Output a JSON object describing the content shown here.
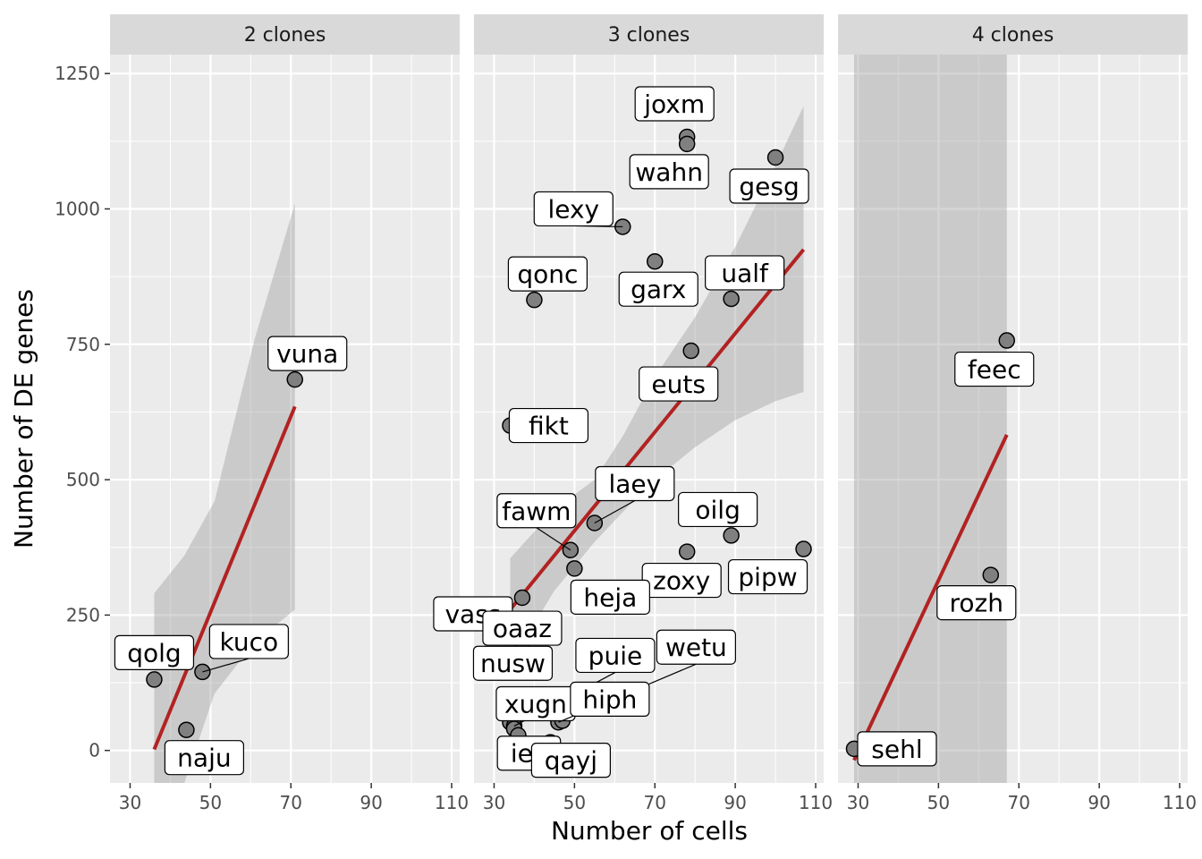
{
  "chart_data": {
    "type": "scatter",
    "xlabel": "Number of cells",
    "ylabel": "Number of DE genes",
    "xlim": [
      25,
      112
    ],
    "ylim": [
      -60,
      1285
    ],
    "x_ticks": [
      30,
      50,
      70,
      90,
      110
    ],
    "y_ticks": [
      0,
      250,
      500,
      750,
      1000,
      1250
    ],
    "grid": true,
    "legend": "none",
    "colors": {
      "panel_bg": "#ebebeb",
      "strip_bg": "#d9d9d9",
      "grid": "#ffffff",
      "point_fill": "#808080",
      "point_stroke": "#000000",
      "fit_line": "#b22222",
      "ribbon": "#999999"
    },
    "facets": [
      {
        "strip": "2 clones",
        "points": [
          {
            "label": "vuna",
            "x": 71,
            "y": 685
          },
          {
            "label": "kuco",
            "x": 48,
            "y": 145
          },
          {
            "label": "qolg",
            "x": 36,
            "y": 131
          },
          {
            "label": "naju",
            "x": 44,
            "y": 38
          }
        ],
        "fit": {
          "x": [
            36,
            71
          ],
          "y": [
            2,
            635
          ]
        },
        "ribbon": {
          "x": [
            36,
            43.5,
            51,
            61,
            71
          ],
          "lower": [
            -60,
            -60,
            105,
            200,
            260
          ],
          "upper": [
            290,
            360,
            460,
            760,
            1010
          ]
        }
      },
      {
        "strip": "3 clones",
        "points": [
          {
            "label": "joxm",
            "x": 78,
            "y": 1133
          },
          {
            "label": "wahn",
            "x": 78,
            "y": 1120
          },
          {
            "label": "gesg",
            "x": 100,
            "y": 1095
          },
          {
            "label": "lexy",
            "x": 62,
            "y": 967
          },
          {
            "label": "garx",
            "x": 70,
            "y": 903
          },
          {
            "label": "qonc",
            "x": 40,
            "y": 832
          },
          {
            "label": "ualf",
            "x": 89,
            "y": 834
          },
          {
            "label": "euts",
            "x": 79,
            "y": 738
          },
          {
            "label": "fikt",
            "x": 34,
            "y": 600
          },
          {
            "label": "laey",
            "x": 55,
            "y": 420
          },
          {
            "label": "oilg",
            "x": 89,
            "y": 397
          },
          {
            "label": "pipw",
            "x": 107,
            "y": 372
          },
          {
            "label": "fawm",
            "x": 49,
            "y": 370
          },
          {
            "label": "zoxy",
            "x": 78,
            "y": 367
          },
          {
            "label": "heja",
            "x": 50,
            "y": 336
          },
          {
            "label": "vass",
            "x": 37,
            "y": 282
          },
          {
            "label": "oaaz",
            "x": 37,
            "y": 201
          },
          {
            "label": "nusw",
            "x": 34,
            "y": 52
          },
          {
            "label": "puie",
            "x": 35,
            "y": 45
          },
          {
            "label": "xugn",
            "x": 35,
            "y": 40
          },
          {
            "label": "wetu",
            "x": 46,
            "y": 52
          },
          {
            "label": "hiph",
            "x": 47,
            "y": 55
          },
          {
            "label": "iek",
            "x": 36,
            "y": 28
          },
          {
            "label": "qayj",
            "x": 44,
            "y": 15
          }
        ],
        "fit": {
          "x": [
            34,
            107
          ],
          "y": [
            260,
            925
          ]
        },
        "ribbon": {
          "x": [
            34,
            45,
            55,
            62,
            70,
            80,
            90,
            100,
            107
          ],
          "lower": [
            160,
            295,
            385,
            440,
            500,
            560,
            610,
            645,
            662
          ],
          "upper": [
            355,
            445,
            500,
            580,
            690,
            800,
            930,
            1080,
            1190
          ]
        }
      },
      {
        "strip": "4 clones",
        "points": [
          {
            "label": "feec",
            "x": 67,
            "y": 757
          },
          {
            "label": "rozh",
            "x": 63,
            "y": 324
          },
          {
            "label": "sehl",
            "x": 29,
            "y": 3
          }
        ],
        "fit": {
          "x": [
            29,
            67
          ],
          "y": [
            -18,
            583
          ]
        },
        "ribbon": {
          "x": [
            29,
            67
          ],
          "lower": [
            -60,
            -60
          ],
          "upper": [
            1285,
            1285
          ]
        }
      }
    ]
  }
}
